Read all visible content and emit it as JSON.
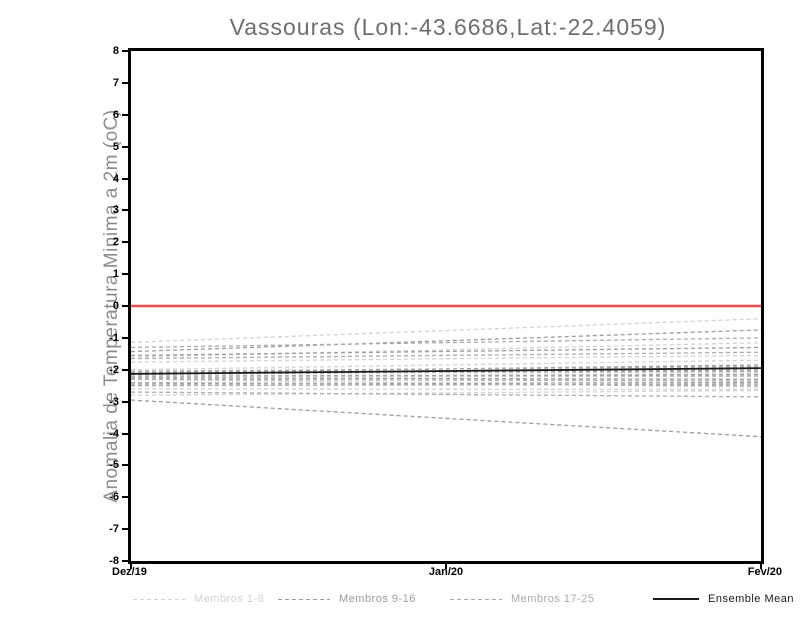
{
  "title": "Vassouras (Lon:-43.6686,Lat:-22.4059)",
  "axes": {
    "y_label": "Anomalia de Temperatura Minima a 2m (oC)",
    "y_ticks": [
      8,
      7,
      6,
      5,
      4,
      3,
      2,
      1,
      0,
      -1,
      -2,
      -3,
      -4,
      -5,
      -6,
      -7,
      -8
    ],
    "x_ticks": [
      "Dez/19",
      "Jan/20",
      "Fev/20"
    ]
  },
  "legend": {
    "items": [
      {
        "label": "Membros 1-8",
        "color": "#d2d2d2",
        "style": "dashed"
      },
      {
        "label": "Membros 9-16",
        "color": "#9c9c9c",
        "style": "dashed"
      },
      {
        "label": "Membros 17-25",
        "color": "#ababab",
        "style": "dashed"
      },
      {
        "label": "Ensemble Mean",
        "color": "#1a1a1a",
        "style": "solid"
      }
    ]
  },
  "colors": {
    "zero_line": "#e85050",
    "frame": "#000000",
    "title_text": "#6e6e6e",
    "axis_label_text": "#8c8c8c"
  },
  "chart_data": {
    "type": "line",
    "title": "Vassouras (Lon:-43.6686,Lat:-22.4059)",
    "xlabel": "",
    "ylabel": "Anomalia de Temperatura Minima a 2m (oC)",
    "x": [
      "Dez/19",
      "Fev/20"
    ],
    "x_axis_ticks": [
      "Dez/19",
      "Jan/20",
      "Fev/20"
    ],
    "ylim": [
      -8,
      8
    ],
    "grid": false,
    "legend_position": "bottom",
    "zero_line_y": 0,
    "series": [
      {
        "name": "Membro 1",
        "group": "g1",
        "values": [
          -1.14,
          -0.4
        ]
      },
      {
        "name": "Membro 2",
        "group": "g1",
        "values": [
          -1.6,
          -1.15
        ]
      },
      {
        "name": "Membro 3",
        "group": "g1",
        "values": [
          -1.76,
          -1.55
        ]
      },
      {
        "name": "Membro 4",
        "group": "g1",
        "values": [
          -2.0,
          -1.7
        ]
      },
      {
        "name": "Membro 5",
        "group": "g1",
        "values": [
          -2.05,
          -2.1
        ]
      },
      {
        "name": "Membro 6",
        "group": "g1",
        "values": [
          -2.3,
          -2.55
        ]
      },
      {
        "name": "Membro 7",
        "group": "g1",
        "values": [
          -2.6,
          -2.62
        ]
      },
      {
        "name": "Membro 8",
        "group": "g1",
        "values": [
          -2.8,
          -2.65
        ]
      },
      {
        "name": "Membro 9",
        "group": "g2",
        "values": [
          -1.43,
          -0.75
        ]
      },
      {
        "name": "Membro 10",
        "group": "g2",
        "values": [
          -1.55,
          -1.3
        ]
      },
      {
        "name": "Membro 11",
        "group": "g2",
        "values": [
          -2.1,
          -1.85
        ]
      },
      {
        "name": "Membro 12",
        "group": "g2",
        "values": [
          -2.15,
          -2.0
        ]
      },
      {
        "name": "Membro 13",
        "group": "g2",
        "values": [
          -2.2,
          -2.15
        ]
      },
      {
        "name": "Membro 14",
        "group": "g2",
        "values": [
          -2.25,
          -2.3
        ]
      },
      {
        "name": "Membro 15",
        "group": "g2",
        "values": [
          -2.45,
          -2.4
        ]
      },
      {
        "name": "Membro 16",
        "group": "g2",
        "values": [
          -2.95,
          -4.1
        ]
      },
      {
        "name": "Membro 17",
        "group": "g3",
        "values": [
          -1.3,
          -1.0
        ]
      },
      {
        "name": "Membro 18",
        "group": "g3",
        "values": [
          -1.65,
          -1.45
        ]
      },
      {
        "name": "Membro 19",
        "group": "g3",
        "values": [
          -2.05,
          -1.9
        ]
      },
      {
        "name": "Membro 20",
        "group": "g3",
        "values": [
          -2.1,
          -2.05
        ]
      },
      {
        "name": "Membro 21",
        "group": "g3",
        "values": [
          -2.2,
          -2.2
        ]
      },
      {
        "name": "Membro 22",
        "group": "g3",
        "values": [
          -2.3,
          -2.35
        ]
      },
      {
        "name": "Membro 23",
        "group": "g3",
        "values": [
          -2.4,
          -2.5
        ]
      },
      {
        "name": "Membro 24",
        "group": "g3",
        "values": [
          -2.5,
          -2.45
        ]
      },
      {
        "name": "Membro 25",
        "group": "g3",
        "values": [
          -2.7,
          -2.85
        ]
      },
      {
        "name": "Ensemble Mean",
        "group": "mean",
        "values": [
          -2.13,
          -1.95
        ]
      }
    ]
  }
}
